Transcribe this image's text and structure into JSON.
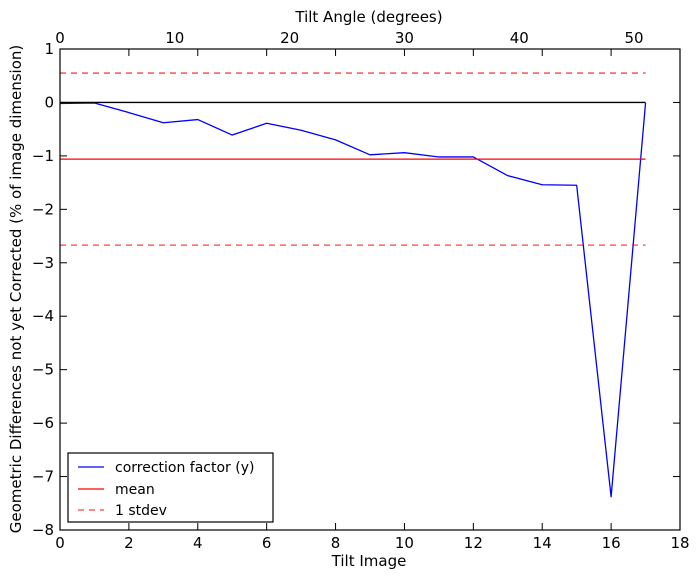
{
  "chart_data": {
    "type": "line",
    "xlabel": "Tilt Image",
    "ylabel": "Geometric Differences not yet Corrected (% of image dimension)",
    "x2label": "Tilt Angle (degrees)",
    "xlim": [
      0,
      18
    ],
    "ylim": [
      -8,
      1
    ],
    "x2lim": [
      0,
      54
    ],
    "x_ticks": [
      0,
      2,
      4,
      6,
      8,
      10,
      12,
      14,
      16,
      18
    ],
    "y_ticks": [
      1,
      0,
      -1,
      -2,
      -3,
      -4,
      -5,
      -6,
      -7,
      -8
    ],
    "x2_ticks": [
      0,
      10,
      20,
      30,
      40,
      50
    ],
    "x_tick_labels": [
      "0",
      "2",
      "4",
      "6",
      "8",
      "10",
      "12",
      "14",
      "16",
      "18"
    ],
    "y_tick_labels": [
      "1",
      "0",
      "−1",
      "−2",
      "−3",
      "−4",
      "−5",
      "−6",
      "−7",
      "−8"
    ],
    "x2_tick_labels": [
      "0",
      "10",
      "20",
      "30",
      "40",
      "50"
    ],
    "grid": false,
    "legend_position": "lower-left",
    "series": [
      {
        "name": "correction factor (y)",
        "color": "#0000ff",
        "style": "solid",
        "x": [
          0,
          1,
          2,
          3,
          4,
          5,
          6,
          7,
          8,
          9,
          10,
          11,
          12,
          13,
          14,
          15,
          16,
          17
        ],
        "values": [
          -0.02,
          -0.01,
          -0.19,
          -0.38,
          -0.32,
          -0.61,
          -0.39,
          -0.52,
          -0.7,
          -0.98,
          -0.94,
          -1.02,
          -1.02,
          -1.37,
          -1.54,
          -1.55,
          -7.38,
          -0.01
        ]
      },
      {
        "name": "mean",
        "color": "#ff0000",
        "style": "solid",
        "x": [
          0,
          17
        ],
        "values": [
          -1.06,
          -1.06
        ]
      },
      {
        "name": "1 stdev",
        "color": "#ff0000",
        "style": "dashed",
        "x": [
          0,
          17
        ],
        "values": [
          0.55,
          0.55
        ]
      },
      {
        "color": "#ff0000",
        "style": "dashed",
        "x": [
          0,
          17
        ],
        "values": [
          -2.67,
          -2.67
        ]
      },
      {
        "color": "#000000",
        "style": "solid",
        "x": [
          0,
          17
        ],
        "values": [
          0,
          0
        ]
      }
    ],
    "legend": [
      {
        "label": "correction factor (y)",
        "color": "#0000ff",
        "style": "solid"
      },
      {
        "label": "mean",
        "color": "#ff0000",
        "style": "solid"
      },
      {
        "label": "1 stdev",
        "color": "#ff0000",
        "style": "dashed"
      }
    ]
  }
}
